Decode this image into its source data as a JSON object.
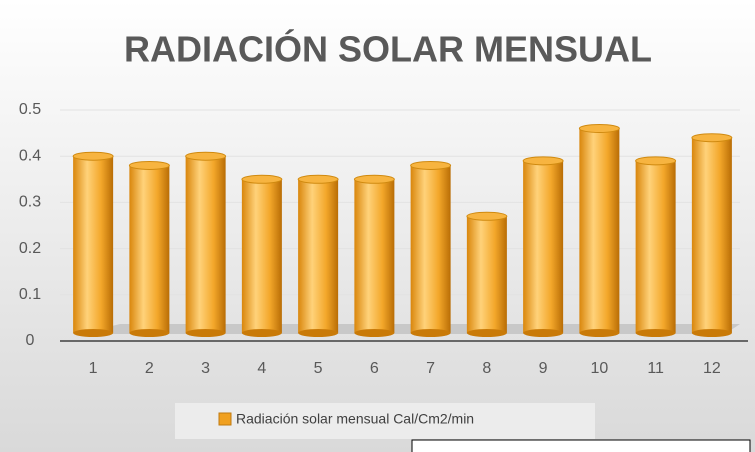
{
  "chart_data": {
    "type": "bar",
    "title": "RADIACIÓN SOLAR MENSUAL",
    "categories": [
      "1",
      "2",
      "3",
      "4",
      "5",
      "6",
      "7",
      "8",
      "9",
      "10",
      "11",
      "12"
    ],
    "series": [
      {
        "name": "Radiación solar mensual Cal/Cm2/min",
        "color": "#f0a020",
        "values": [
          0.4,
          0.38,
          0.4,
          0.35,
          0.35,
          0.35,
          0.38,
          0.27,
          0.39,
          0.46,
          0.39,
          0.44
        ]
      }
    ],
    "ylim": [
      0,
      0.5
    ],
    "yticks": [
      0,
      0.1,
      0.2,
      0.3,
      0.4,
      0.5
    ],
    "grid": true,
    "legend": "bottom"
  }
}
